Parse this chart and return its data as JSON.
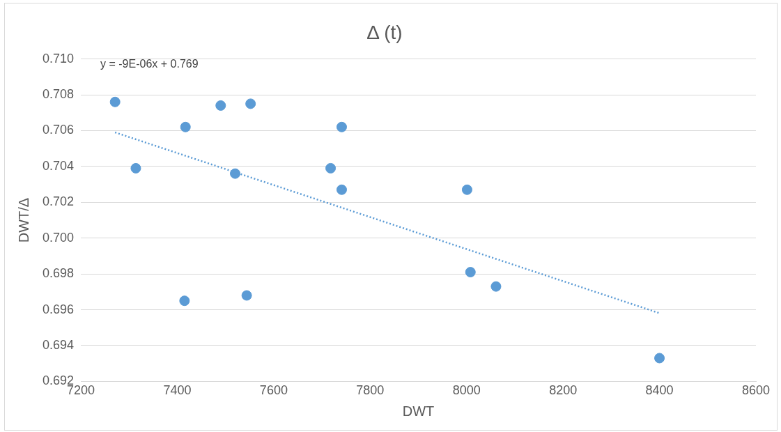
{
  "chart_data": {
    "type": "scatter",
    "title": "Δ (t)",
    "xlabel": "DWT",
    "ylabel": "DWT/Δ",
    "annotations": [
      "y = -9E-06x + 0.769"
    ],
    "series": [
      {
        "type": "scatter",
        "color": "#5b9bd5",
        "x": [
          7271,
          7417,
          7314,
          7490,
          7552,
          7520,
          7415,
          7544,
          7718,
          7741,
          7741,
          8001,
          8008,
          8061,
          8400
        ],
        "values": [
          0.7076,
          0.7062,
          0.7039,
          0.7074,
          0.7075,
          0.7036,
          0.6965,
          0.6968,
          0.7039,
          0.7062,
          0.7027,
          0.7027,
          0.6981,
          0.6973,
          0.6933
        ],
        "marker": "circle"
      },
      {
        "type": "line",
        "color": "#5b9bd5",
        "x": [
          7271,
          8401
        ],
        "values": [
          0.7059,
          0.6958
        ],
        "line_style": "dotted",
        "marker": "none"
      }
    ],
    "xlim": [
      7200,
      8600
    ],
    "xticks": [
      7200,
      7400,
      7600,
      7800,
      8000,
      8200,
      8400,
      8600
    ],
    "ylim": [
      0.692,
      0.71
    ],
    "yticks": [
      {
        "value": 0.692,
        "label": "0.692"
      },
      {
        "value": 0.694,
        "label": "0.694"
      },
      {
        "value": 0.696,
        "label": "0.696"
      },
      {
        "value": 0.698,
        "label": "0.698"
      },
      {
        "value": 0.7,
        "label": "0.700"
      },
      {
        "value": 0.702,
        "label": "0.702"
      },
      {
        "value": 0.704,
        "label": "0.704"
      },
      {
        "value": 0.706,
        "label": "0.706"
      },
      {
        "value": 0.708,
        "label": "0.708"
      },
      {
        "value": 0.71,
        "label": "0.710"
      }
    ],
    "grid": "y",
    "legend": false
  }
}
